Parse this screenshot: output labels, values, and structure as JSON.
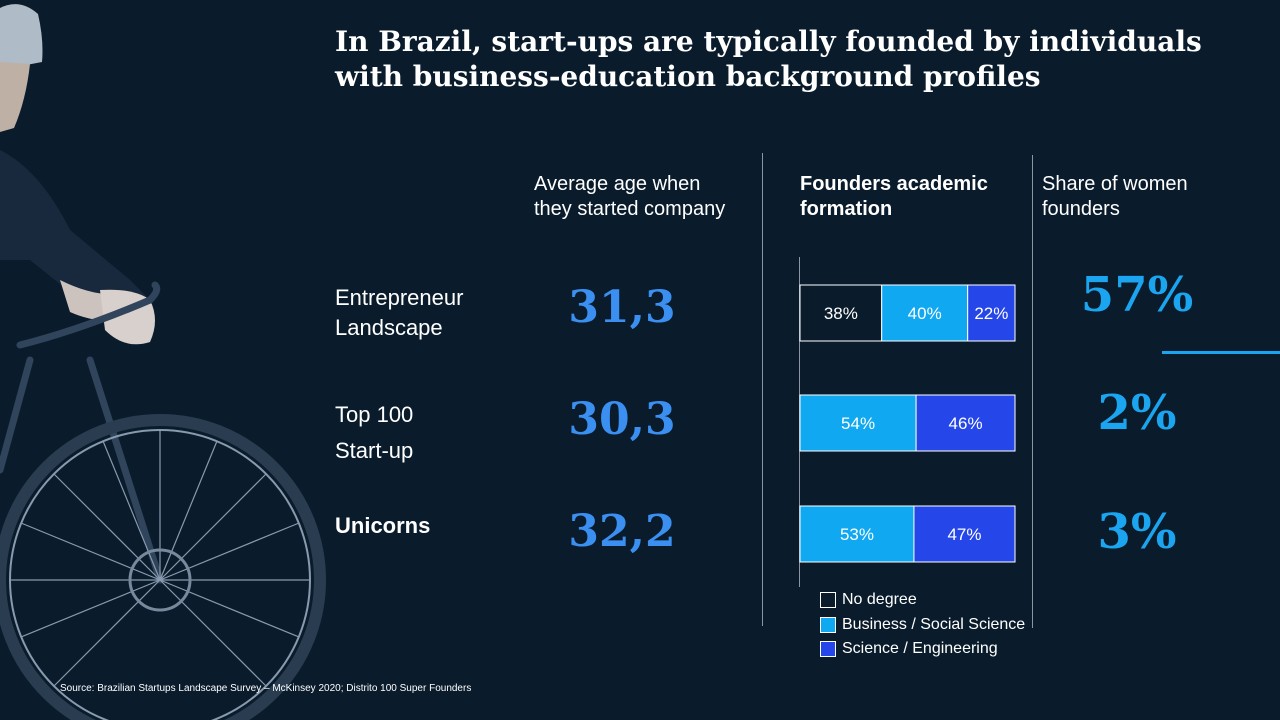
{
  "title": {
    "line1": "In Brazil, start-ups are typically founded by individuals",
    "line2": "with business-education background profiles"
  },
  "columns": {
    "age": {
      "line1": "Average age when",
      "line2": "they started company"
    },
    "formation": {
      "line1": "Founders academic",
      "line2": "formation"
    },
    "women": {
      "line1": "Share of women",
      "line2": "founders"
    }
  },
  "rows": [
    {
      "label_line1": "Entrepreneur",
      "label_line2": "Landscape",
      "age": "31,3",
      "women": "57%"
    },
    {
      "label_line1": "Top 100",
      "label_line2": "Start-up",
      "age": "30,3",
      "women": "2%"
    },
    {
      "label_line1": "Unicorns",
      "label_line2": "",
      "age": "32,2",
      "women": "3%"
    }
  ],
  "chart_data": {
    "type": "bar",
    "orientation": "horizontal",
    "stacked": true,
    "title": "Founders academic formation",
    "categories": [
      "Entrepreneur Landscape",
      "Top 100 Start-up",
      "Unicorns"
    ],
    "series": [
      {
        "name": "No degree",
        "values": [
          38,
          0,
          0
        ],
        "labels": [
          "38%",
          "",
          ""
        ]
      },
      {
        "name": "Business / Social Science",
        "values": [
          40,
          54,
          53
        ],
        "labels": [
          "40%",
          "54%",
          "53%"
        ]
      },
      {
        "name": "Science / Engineering",
        "values": [
          22,
          46,
          47
        ],
        "labels": [
          "22%",
          "46%",
          "47%"
        ]
      }
    ],
    "unit": "%",
    "xlim": [
      0,
      100
    ],
    "legend_position": "bottom"
  },
  "legend": [
    {
      "label": "No degree",
      "color": "#0a1c2c"
    },
    {
      "label": "Business / Social Science",
      "color": "#10a8f0"
    },
    {
      "label": "Science / Engineering",
      "color": "#2546e8"
    }
  ],
  "colors": {
    "background": "#0a1c2c",
    "age_numbers": "#3a8ff0",
    "women_numbers": "#1ba5f0"
  },
  "source": "Source: Brazilian Startups Landscape Survey – McKinsey 2020; Distrito 100 Super Founders"
}
